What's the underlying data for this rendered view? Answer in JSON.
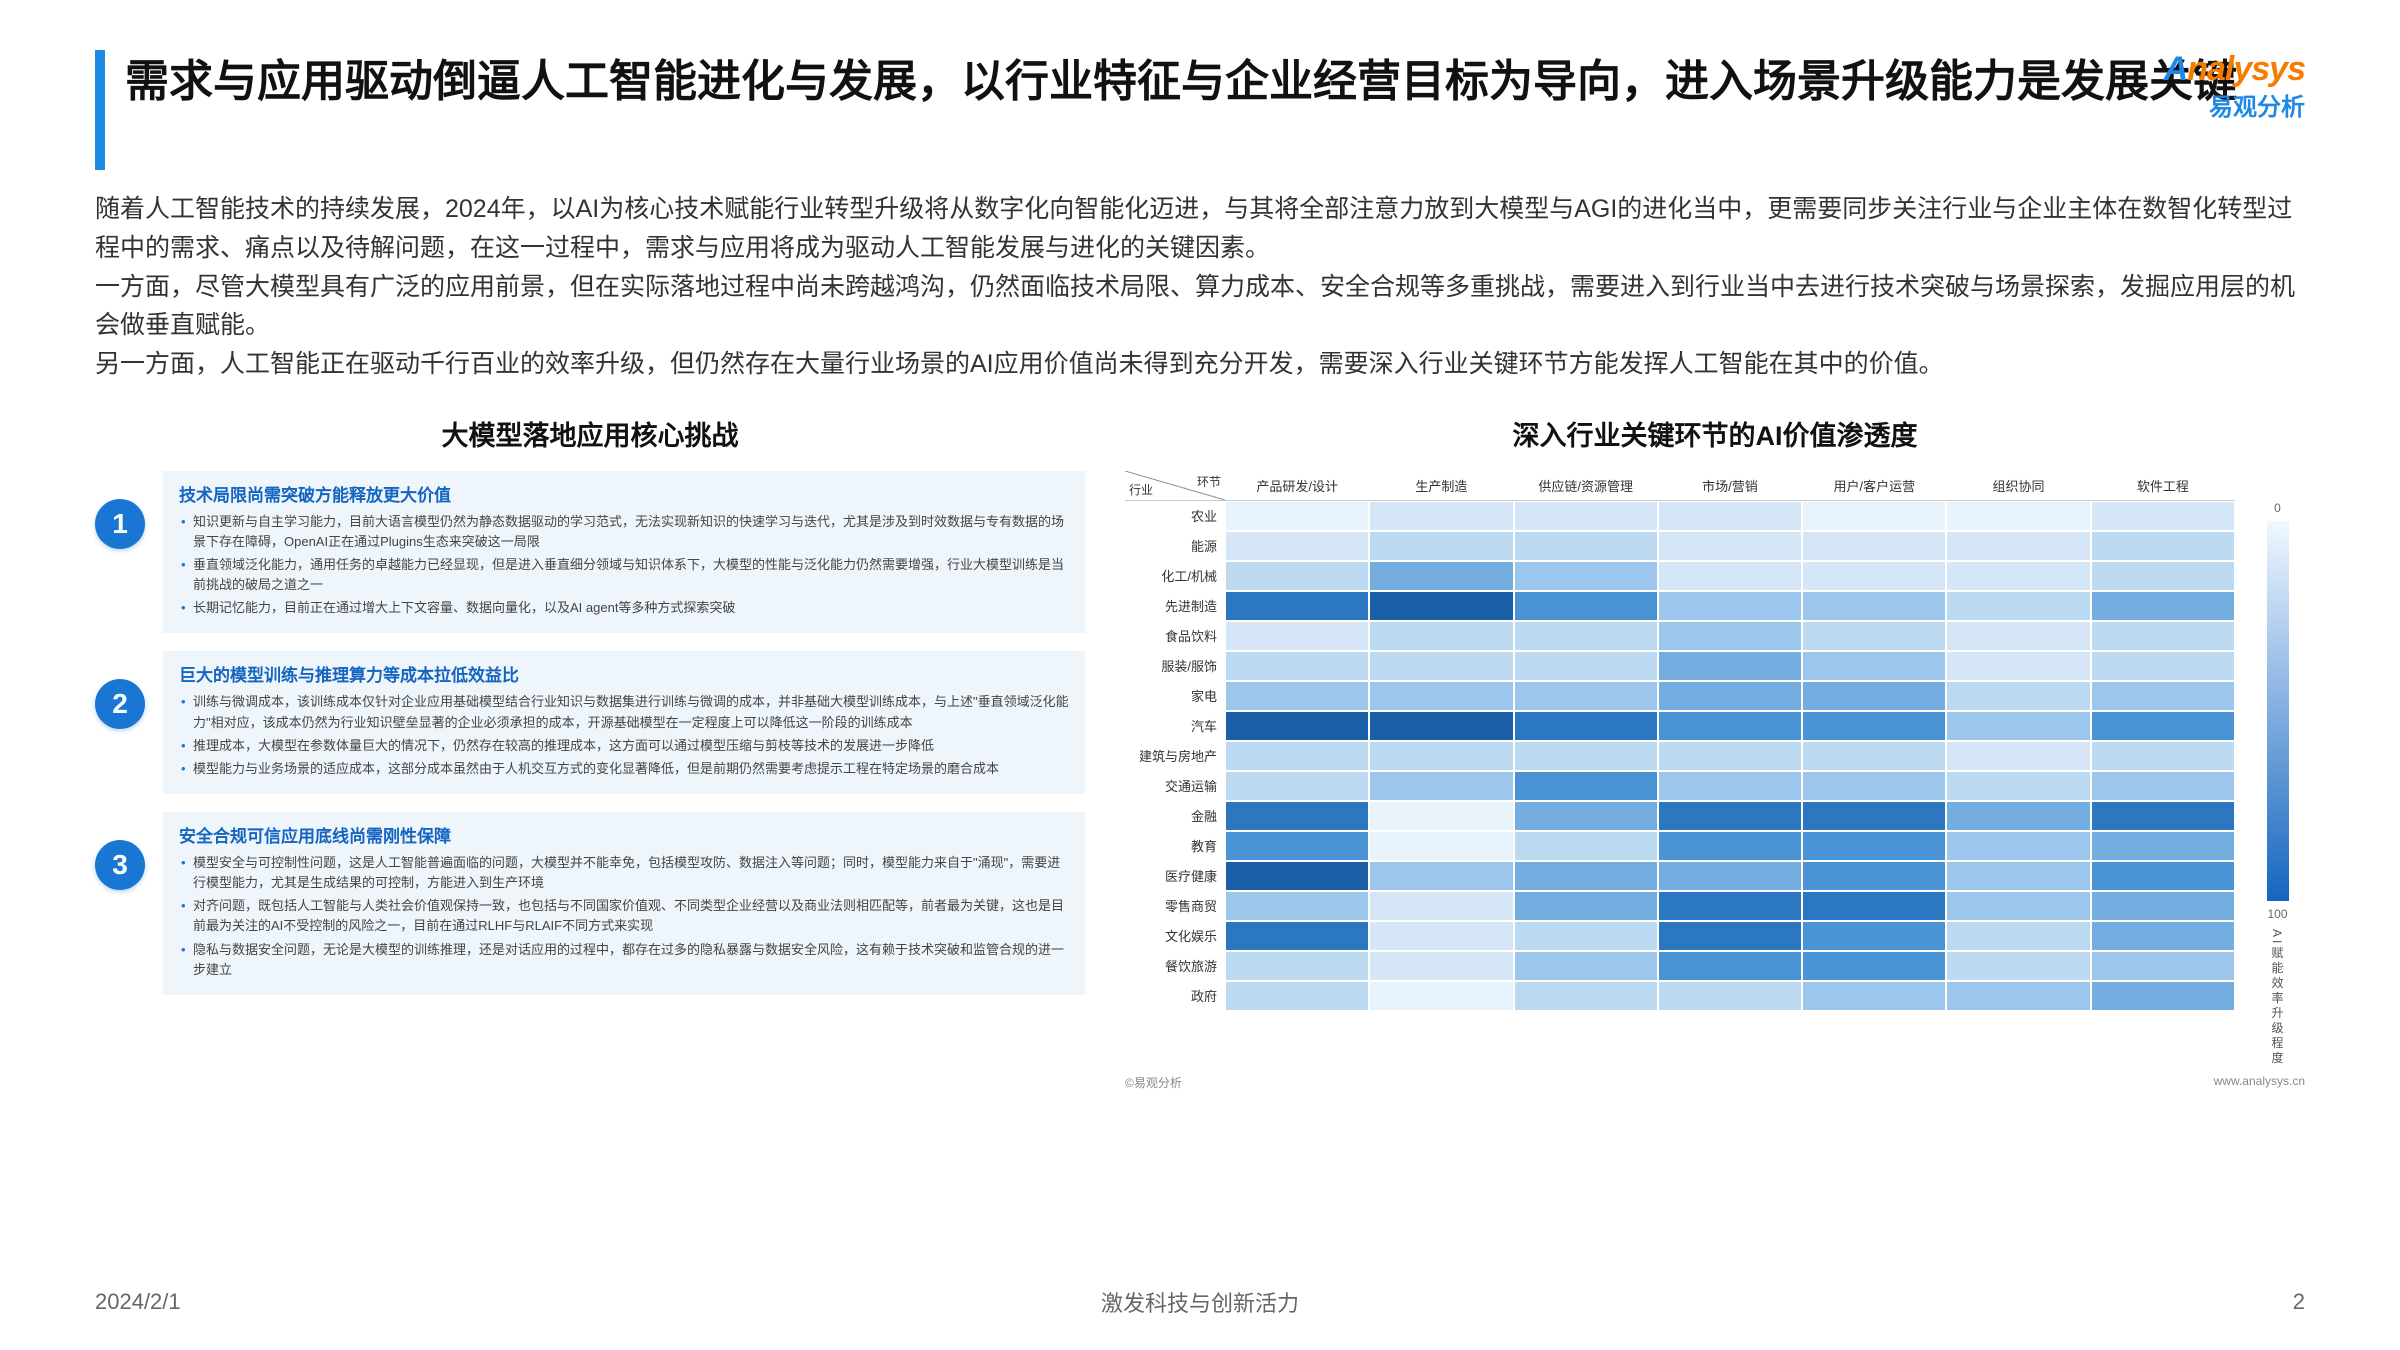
{
  "title": "需求与应用驱动倒逼人工智能进化与发展，以行业特征与企业经营目标为导向，进入场景升级能力是发展关键",
  "logo": {
    "top_a": "A",
    "top_rest": "nalysys",
    "bottom": "易观分析"
  },
  "intro": "随着人工智能技术的持续发展，2024年，以AI为核心技术赋能行业转型升级将从数字化向智能化迈进，与其将全部注意力放到大模型与AGI的进化当中，更需要同步关注行业与企业主体在数智化转型过程中的需求、痛点以及待解问题，在这一过程中，需求与应用将成为驱动人工智能发展与进化的关键因素。\n一方面，尽管大模型具有广泛的应用前景，但在实际落地过程中尚未跨越鸿沟，仍然面临技术局限、算力成本、安全合规等多重挑战，需要进入到行业当中去进行技术突破与场景探索，发掘应用层的机会做垂直赋能。\n另一方面，人工智能正在驱动千行百业的效率升级，但仍然存在大量行业场景的AI应用价值尚未得到充分开发，需要深入行业关键环节方能发挥人工智能在其中的价值。",
  "left_title": "大模型落地应用核心挑战",
  "right_title": "深入行业关键环节的AI价值渗透度",
  "challenges": [
    {
      "n": "1",
      "title": "技术局限尚需突破方能释放更大价值",
      "items": [
        "知识更新与自主学习能力，目前大语言模型仍然为静态数据驱动的学习范式，无法实现新知识的快速学习与迭代，尤其是涉及到时效数据与专有数据的场景下存在障碍，OpenAI正在通过Plugins生态来突破这一局限",
        "垂直领域泛化能力，通用任务的卓越能力已经显现，但是进入垂直细分领域与知识体系下，大模型的性能与泛化能力仍然需要增强，行业大模型训练是当前挑战的破局之道之一",
        "长期记忆能力，目前正在通过增大上下文容量、数据向量化，以及AI agent等多种方式探索突破"
      ]
    },
    {
      "n": "2",
      "title": "巨大的模型训练与推理算力等成本拉低效益比",
      "items": [
        "训练与微调成本，该训练成本仅针对企业应用基础模型结合行业知识与数据集进行训练与微调的成本，并非基础大模型训练成本，与上述\"垂直领域泛化能力\"相对应，该成本仍然为行业知识壁垒显著的企业必须承担的成本，开源基础模型在一定程度上可以降低这一阶段的训练成本",
        "推理成本，大模型在参数体量巨大的情况下，仍然存在较高的推理成本，这方面可以通过模型压缩与剪枝等技术的发展进一步降低",
        "模型能力与业务场景的适应成本，这部分成本虽然由于人机交互方式的变化显著降低，但是前期仍然需要考虑提示工程在特定场景的磨合成本"
      ]
    },
    {
      "n": "3",
      "title": "安全合规可信应用底线尚需刚性保障",
      "items": [
        "模型安全与可控制性问题，这是人工智能普遍面临的问题，大模型并不能幸免，包括模型攻防、数据注入等问题；同时，模型能力来自于\"涌现\"，需要进行模型能力，尤其是生成结果的可控制，方能进入到生产环境",
        "对齐问题，既包括人工智能与人类社会价值观保持一致，也包括与不同国家价值观、不同类型企业经营以及商业法则相匹配等，前者最为关键，这也是目前最为关注的AI不受控制的风险之一，目前在通过RLHF与RLAIF不同方式来实现",
        "隐私与数据安全问题，无论是大模型的训练推理，还是对话应用的过程中，都存在过多的隐私暴露与数据安全风险，这有赖于技术突破和监管合规的进一步建立"
      ]
    }
  ],
  "heatmap": {
    "corner": {
      "top": "环节",
      "left": "行业"
    },
    "cols": [
      "产品研发/设计",
      "生产制造",
      "供应链/资源管理",
      "市场/营销",
      "用户/客户运营",
      "组织协同",
      "软件工程"
    ],
    "rows": [
      "农业",
      "能源",
      "化工/机械",
      "先进制造",
      "食品饮料",
      "服装/服饰",
      "家电",
      "汽车",
      "建筑与房地产",
      "交通运输",
      "金融",
      "教育",
      "医疗健康",
      "零售商贸",
      "文化娱乐",
      "餐饮旅游",
      "政府"
    ],
    "palette": [
      "#f5fafe",
      "#e8f2fb",
      "#d5e7f7",
      "#bcd9f2",
      "#9cc6eb",
      "#74aee1",
      "#4a93d5",
      "#2c77c2",
      "#1a5fa8"
    ],
    "data": [
      [
        1,
        2,
        2,
        2,
        1,
        1,
        2
      ],
      [
        2,
        3,
        3,
        2,
        2,
        2,
        3
      ],
      [
        3,
        5,
        4,
        2,
        2,
        2,
        3
      ],
      [
        7,
        8,
        6,
        4,
        4,
        3,
        5
      ],
      [
        2,
        3,
        3,
        4,
        3,
        2,
        3
      ],
      [
        3,
        3,
        3,
        5,
        4,
        2,
        3
      ],
      [
        4,
        4,
        4,
        5,
        5,
        3,
        4
      ],
      [
        8,
        8,
        7,
        6,
        6,
        4,
        6
      ],
      [
        3,
        3,
        3,
        3,
        3,
        2,
        3
      ],
      [
        3,
        4,
        6,
        4,
        4,
        3,
        4
      ],
      [
        7,
        1,
        5,
        7,
        7,
        5,
        7
      ],
      [
        6,
        1,
        3,
        6,
        6,
        4,
        5
      ],
      [
        8,
        4,
        5,
        5,
        6,
        4,
        6
      ],
      [
        4,
        2,
        5,
        7,
        7,
        4,
        5
      ],
      [
        7,
        2,
        3,
        7,
        6,
        3,
        5
      ],
      [
        3,
        2,
        4,
        6,
        6,
        3,
        4
      ],
      [
        3,
        1,
        3,
        3,
        4,
        4,
        5
      ]
    ],
    "legend": {
      "min": "0",
      "max": "100",
      "label": "AI赋能效率升级程度"
    },
    "source_left": "©易观分析",
    "source_right": "www.analysys.cn"
  },
  "footer": {
    "date": "2024/2/1",
    "center": "激发科技与创新活力",
    "page": "2"
  }
}
